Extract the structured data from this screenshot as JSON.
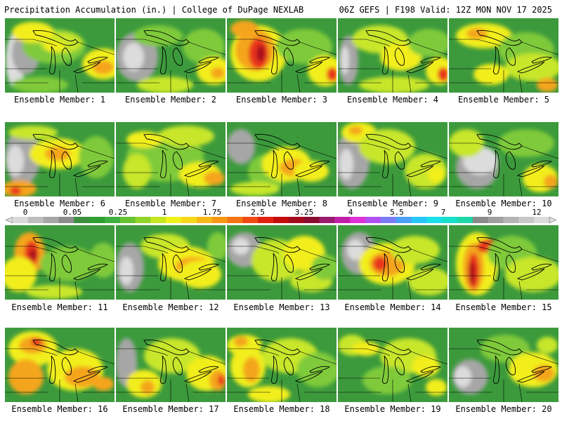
{
  "header": {
    "title": "Precipitation Accumulation (in.) | College of DuPage NEXLAB",
    "run_info": "06Z GEFS | F198 Valid: 12Z MON NOV 17 2025"
  },
  "colorbar": {
    "labels": [
      "0",
      "0.05",
      "0.25",
      "1",
      "1.75",
      "2.5",
      "3.25",
      "4",
      "5.5",
      "7",
      "9",
      "12"
    ],
    "colors": [
      "#d9d9d9",
      "#bdbdbd",
      "#a6a6a6",
      "#8c8c8c",
      "#3c8f3c",
      "#2e9e2e",
      "#3fb03f",
      "#66c22e",
      "#8fd42a",
      "#c7e61f",
      "#f0f01a",
      "#f7d719",
      "#f7b818",
      "#f79716",
      "#f47414",
      "#ef4a12",
      "#e02010",
      "#c40d0d",
      "#a30a1c",
      "#8a0b30",
      "#9c1a6e",
      "#c21fa8",
      "#e030d8",
      "#b050f0",
      "#7b7cf5",
      "#4aa0f7",
      "#27c6f7",
      "#1adfe8",
      "#16e0c8",
      "#20d6a8",
      "#8a8a8a",
      "#9f9f9f",
      "#b4b4b4",
      "#c8c8c8",
      "#dcdcdc"
    ]
  },
  "members": [
    {
      "label": "Ensemble Member: 1"
    },
    {
      "label": "Ensemble Member: 2"
    },
    {
      "label": "Ensemble Member: 3"
    },
    {
      "label": "Ensemble Member: 4"
    },
    {
      "label": "Ensemble Member: 5"
    },
    {
      "label": "Ensemble Member: 6"
    },
    {
      "label": "Ensemble Member: 7"
    },
    {
      "label": "Ensemble Member: 8"
    },
    {
      "label": "Ensemble Member: 9"
    },
    {
      "label": "Ensemble Member: 10"
    },
    {
      "label": "Ensemble Member: 11"
    },
    {
      "label": "Ensemble Member: 12"
    },
    {
      "label": "Ensemble Member: 13"
    },
    {
      "label": "Ensemble Member: 14"
    },
    {
      "label": "Ensemble Member: 15"
    },
    {
      "label": "Ensemble Member: 16"
    },
    {
      "label": "Ensemble Member: 17"
    },
    {
      "label": "Ensemble Member: 18"
    },
    {
      "label": "Ensemble Member: 19"
    },
    {
      "label": "Ensemble Member: 20"
    }
  ],
  "map_colors": {
    "base": "#3c9a3c",
    "light_green": "#7fca3a",
    "yellow_green": "#c8e62a",
    "yellow": "#f2ee1c",
    "orange": "#f4a51a",
    "red": "#e8361a",
    "dark_red": "#a8101a",
    "gray": "#a6a6a6",
    "light_gray": "#dcdcdc",
    "outline": "#000000"
  }
}
